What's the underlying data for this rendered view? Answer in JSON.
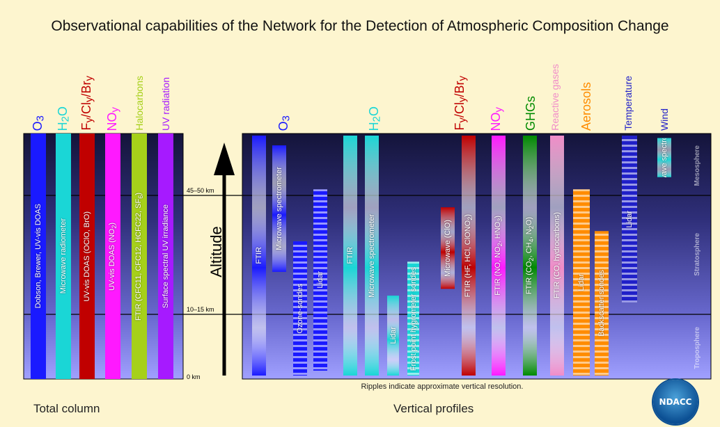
{
  "title": "Observational capabilities of the Network for the Detection of Atmospheric Composition Change",
  "footer": {
    "total_column": "Total column",
    "vertical_profiles": "Vertical profiles",
    "note": "Ripples indicate approximate vertical resolution.",
    "logo_text": "NDACC"
  },
  "altitude": {
    "label": "Altitude",
    "levels": [
      {
        "label": "45–50 km",
        "km": 47.5
      },
      {
        "label": "10–15 km",
        "km": 12.5
      },
      {
        "label": "0 km",
        "km": 0
      }
    ]
  },
  "layers": [
    "Mesosphere",
    "Stratosphere",
    "Troposphere"
  ],
  "colors": {
    "blue": "#1a1aff",
    "cyan": "#1ad6d6",
    "red": "#c00000",
    "magenta": "#ff19ff",
    "lime": "#a6d01a",
    "violet": "#a61aff",
    "green": "#008a00",
    "pink": "#f08cc8",
    "orange": "#ff8c00",
    "navy": "#2020c8"
  },
  "total_column": {
    "headers": [
      {
        "html": "O<sub>3</sub>",
        "color": "blue"
      },
      {
        "html": "H<sub>2</sub>O",
        "color": "cyan"
      },
      {
        "html": "F<sub>y</sub>/Cl<sub>y</sub>/Br<sub>y</sub>",
        "color": "red"
      },
      {
        "html": "NO<sub>y</sub>",
        "color": "magenta"
      },
      {
        "html": "Halocarbons",
        "color": "lime"
      },
      {
        "html": "UV radiation",
        "color": "violet"
      }
    ],
    "bars": [
      {
        "label": "Dobson, Brewer, UV-vis DOAS",
        "color": "blue"
      },
      {
        "label": "Microwave radiometer",
        "color": "cyan"
      },
      {
        "label": "UV-vis DOAS (OClO, BrO)",
        "color": "red"
      },
      {
        "label": "UV-vis DOAS (NO<sub>2</sub>)",
        "color": "magenta"
      },
      {
        "label": "FTIR (CFC11, CFC12, HCFC22, SF<sub>6</sub>)",
        "color": "lime"
      },
      {
        "label": "Surface spectral UV irradiance",
        "color": "violet"
      }
    ]
  },
  "vertical_profiles": {
    "headers": [
      {
        "html": "O<sub>3</sub>",
        "color": "blue"
      },
      {
        "html": "H<sub>2</sub>O",
        "color": "cyan"
      },
      {
        "html": "F<sub>y</sub>/Cl<sub>y</sub>/Br<sub>y</sub>",
        "color": "red"
      },
      {
        "html": "NO<sub>y</sub>",
        "color": "magenta"
      },
      {
        "html": "GHGs",
        "color": "green"
      },
      {
        "html": "Reactive gases",
        "color": "pink"
      },
      {
        "html": "Aerosols",
        "color": "orange"
      },
      {
        "html": "Temperature",
        "color": "navy"
      },
      {
        "html": "Wind",
        "color": "navy"
      }
    ],
    "instruments": [
      {
        "label": "FTIR",
        "color": "blue",
        "km_top": 72,
        "km_bottom": 0,
        "texture": "smooth"
      },
      {
        "label": "Microwave spectrometer",
        "color": "blue",
        "km_top": 68,
        "km_bottom": 25,
        "texture": "smooth"
      },
      {
        "label": "Ozone-sondes",
        "color": "blue",
        "km_top": 34,
        "km_bottom": 0,
        "texture": "ripple"
      },
      {
        "label": "Lidar",
        "color": "blue",
        "km_top": 50,
        "km_bottom": 1,
        "texture": "ripple"
      },
      {
        "label": "FTIR",
        "color": "cyan",
        "km_top": 72,
        "km_bottom": 0,
        "texture": "smooth"
      },
      {
        "label": "Microwave spectrometer",
        "color": "cyan",
        "km_top": 72,
        "km_bottom": 0,
        "texture": "smooth"
      },
      {
        "label": "Lidar",
        "color": "cyan",
        "km_top": 18,
        "km_bottom": 0,
        "texture": "smooth"
      },
      {
        "label": "Frost point hygrometer sondes",
        "color": "cyan",
        "km_top": 28,
        "km_bottom": 0,
        "texture": "ripple"
      },
      {
        "label": "Microwave (ClO)",
        "color": "red",
        "km_top": 44,
        "km_bottom": 20,
        "texture": "smooth"
      },
      {
        "label": "FTIR (HF, HCl, ClONO<sub>2</sub>)",
        "color": "red",
        "km_top": 72,
        "km_bottom": 0,
        "texture": "smooth"
      },
      {
        "label": "FTIR (NO, NO<sub>2</sub>, HNO<sub>3</sub>)",
        "color": "magenta",
        "km_top": 72,
        "km_bottom": 0,
        "texture": "smooth"
      },
      {
        "label": "FTIR (CO<sub>2</sub>, CH<sub>4</sub>, N<sub>2</sub>O)",
        "color": "green",
        "km_top": 72,
        "km_bottom": 0,
        "texture": "smooth"
      },
      {
        "label": "FTIR (CO, hydrocarbons)",
        "color": "pink",
        "km_top": 72,
        "km_bottom": 0,
        "texture": "smooth"
      },
      {
        "label": "Lidar",
        "color": "orange",
        "km_top": 50,
        "km_bottom": 0,
        "texture": "ripple"
      },
      {
        "label": "Backscatter sondes",
        "color": "orange",
        "km_top": 37,
        "km_bottom": 0,
        "texture": "ripple"
      },
      {
        "label": "Lidar",
        "color": "navy",
        "km_top": 72,
        "km_bottom": 16,
        "texture": "ripple"
      },
      {
        "label": "Microwave spectrometer",
        "color": "cyan",
        "km_top": 71,
        "km_bottom": 55,
        "texture": "smooth"
      }
    ]
  }
}
